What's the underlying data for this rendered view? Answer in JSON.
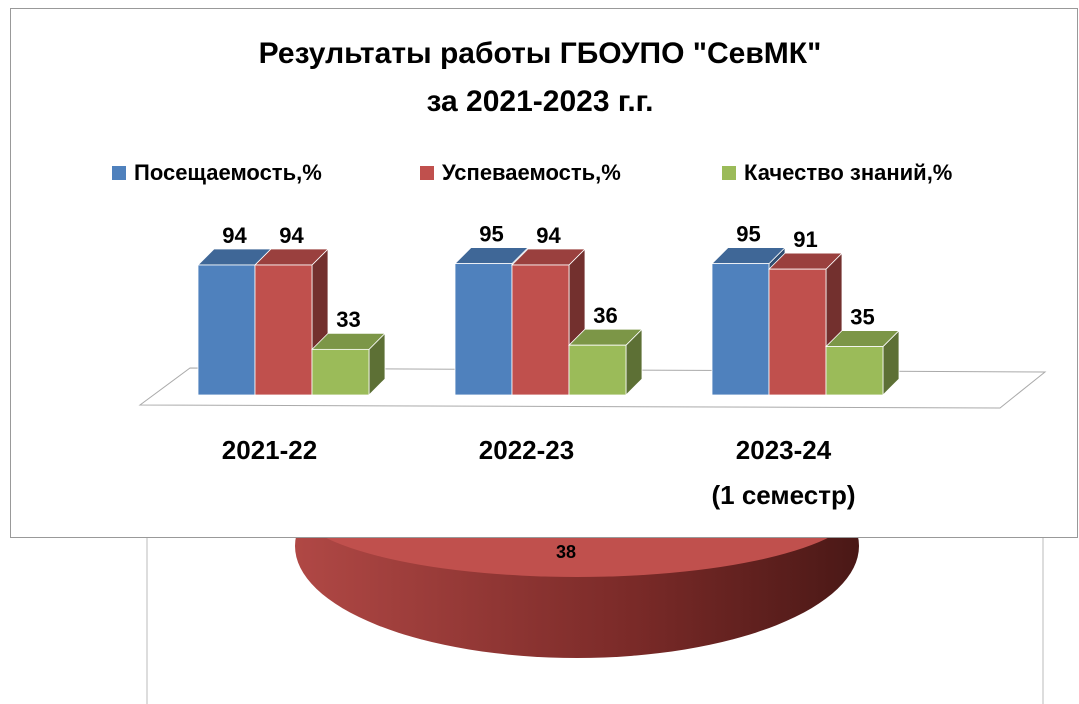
{
  "chart_data": [
    {
      "type": "bar3d",
      "title": "Результаты работы ГБОУПО \"СевМК\"\nза 2021-2023 г.г.",
      "categories": [
        "2021-22",
        "2022-23",
        "2023-24\n(1 семестр)"
      ],
      "series": [
        {
          "name": "Посещаемость,%",
          "color": "#4f81bd",
          "values": [
            94,
            95,
            95
          ]
        },
        {
          "name": "Успеваемость,%",
          "color": "#c0504d",
          "values": [
            94,
            94,
            91
          ]
        },
        {
          "name": "Качество знаний,%",
          "color": "#9bbb59",
          "values": [
            33,
            36,
            35
          ]
        }
      ]
    },
    {
      "type": "pie",
      "values": [
        38
      ],
      "color": "#c0504d"
    }
  ]
}
